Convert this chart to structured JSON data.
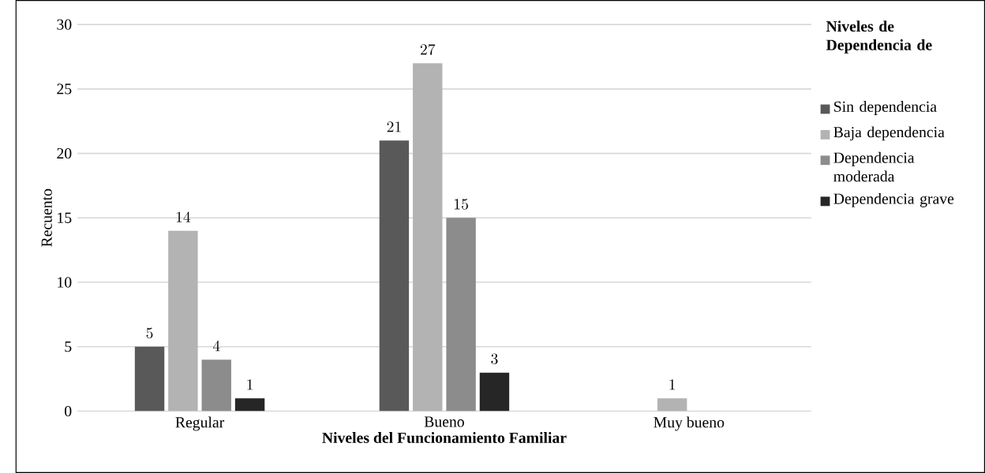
{
  "chart_data": {
    "type": "bar",
    "xlabel": "Niveles del Funcionamiento Familiar",
    "ylabel": "Recuento",
    "legend_title": "Niveles de Dependencia de",
    "categories": [
      "Regular",
      "Bueno",
      "Muy bueno"
    ],
    "series": [
      {
        "name": "Sin dependencia",
        "color": "#595959",
        "values": [
          5,
          21,
          null
        ]
      },
      {
        "name": "Baja dependencia",
        "color": "#b3b3b3",
        "values": [
          14,
          27,
          1
        ]
      },
      {
        "name": "Dependencia moderada",
        "color": "#8c8c8c",
        "values": [
          4,
          15,
          null
        ]
      },
      {
        "name": "Dependencia grave",
        "color": "#262626",
        "values": [
          1,
          3,
          null
        ]
      }
    ],
    "ylim": [
      0,
      30
    ],
    "yticks": [
      0,
      5,
      10,
      15,
      20,
      25,
      30
    ],
    "grid": "y",
    "legend": "right",
    "data_labels": true
  }
}
